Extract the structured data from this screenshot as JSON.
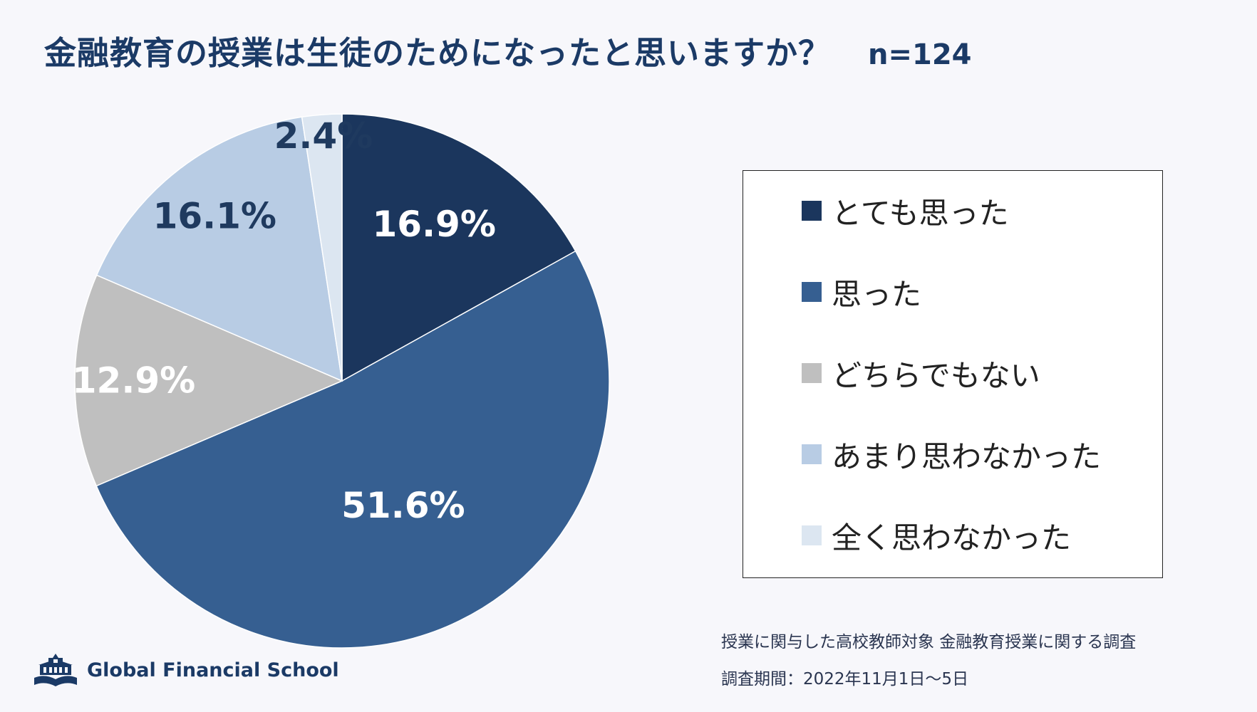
{
  "header": {
    "title": "金融教育の授業は生徒のためになったと思いますか？",
    "sample_size": "n=124"
  },
  "chart_data": {
    "type": "pie",
    "title": "金融教育の授業は生徒のためになったと思いますか？",
    "start": "top, clockwise",
    "slices": [
      {
        "label": "とても思った",
        "value": 16.9,
        "display": "16.9%",
        "color": "#1b365d",
        "label_color": "#ffffff"
      },
      {
        "label": "思った",
        "value": 51.6,
        "display": "51.6%",
        "color": "#365f91",
        "label_color": "#ffffff"
      },
      {
        "label": "どちらでもない",
        "value": 12.9,
        "display": "12.9%",
        "color": "#bfbfbf",
        "label_color": "#ffffff"
      },
      {
        "label": "あまり思わなかった",
        "value": 16.1,
        "display": "16.1%",
        "color": "#b8cce4",
        "label_color": "#1f3a5f"
      },
      {
        "label": "全く思わなかった",
        "value": 2.4,
        "display": "2.4%",
        "color": "#dce6f1",
        "label_color": "#1f3a5f"
      }
    ],
    "legend_position": "right"
  },
  "footnote": {
    "line1": "授業に関与した高校教師対象 金融教育授業に関する調査",
    "line2": "調査期間：2022年11月1日〜5日"
  },
  "logo": {
    "text": "Global Financial School",
    "icon": "school-building-book-icon"
  }
}
